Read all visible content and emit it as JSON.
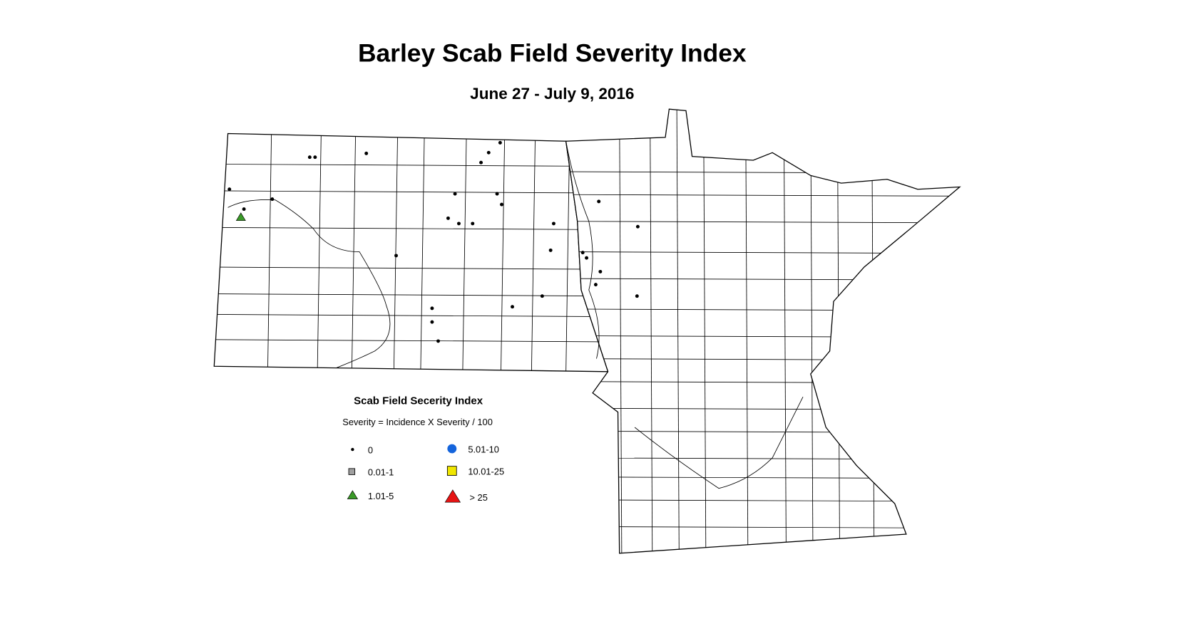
{
  "header": {
    "title": "Barley Scab Field Severity Index",
    "subtitle": "June 27 - July 9, 2016"
  },
  "legend": {
    "title": "Scab Field Secerity Index",
    "subtitle": "Severity = Incidence X Severity / 100",
    "items": [
      {
        "label": "0",
        "shape": "dot",
        "color": "#000000"
      },
      {
        "label": "0.01-1",
        "shape": "square",
        "color": "#a0a0a0"
      },
      {
        "label": "1.01-5",
        "shape": "triangle",
        "color": "#3a9a28"
      },
      {
        "label": "5.01-10",
        "shape": "circle",
        "color": "#1464dc"
      },
      {
        "label": "10.01-25",
        "shape": "square",
        "color": "#f0e600"
      },
      {
        "label": "> 25",
        "shape": "triangle",
        "color": "#e61414"
      }
    ]
  }
}
